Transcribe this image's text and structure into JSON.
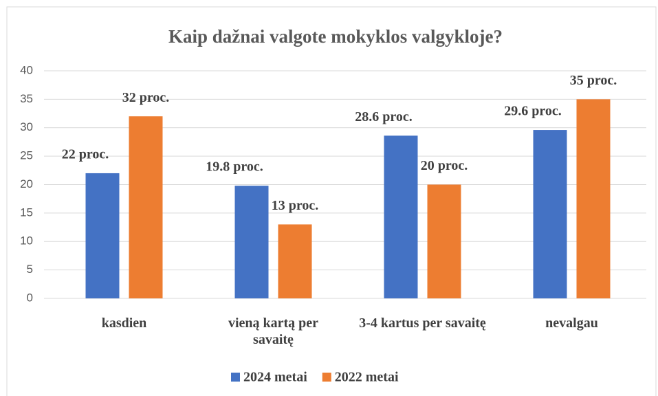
{
  "chart_data": {
    "type": "bar",
    "title": "Kaip dažnai valgote mokyklos valgykloje?",
    "categories": [
      "kasdien",
      "vieną kartą per savaitę",
      "3-4 kartus per savaitę",
      "nevalgau"
    ],
    "series": [
      {
        "name": "2024 metai",
        "color": "#4472c4",
        "values": [
          22,
          19.8,
          28.6,
          29.6
        ],
        "value_labels": [
          "22 proc.",
          "19.8 proc.",
          "28.6 proc.",
          "29.6 proc."
        ]
      },
      {
        "name": "2022 metai",
        "color": "#ed7d31",
        "values": [
          32,
          13,
          20,
          35
        ],
        "value_labels": [
          "32 proc.",
          "13 proc.",
          "20 proc.",
          "35 proc."
        ]
      }
    ],
    "ylim": [
      0,
      40
    ],
    "yticks": [
      0,
      5,
      10,
      15,
      20,
      25,
      30,
      35,
      40
    ],
    "grid": true,
    "legend": "bottom"
  }
}
